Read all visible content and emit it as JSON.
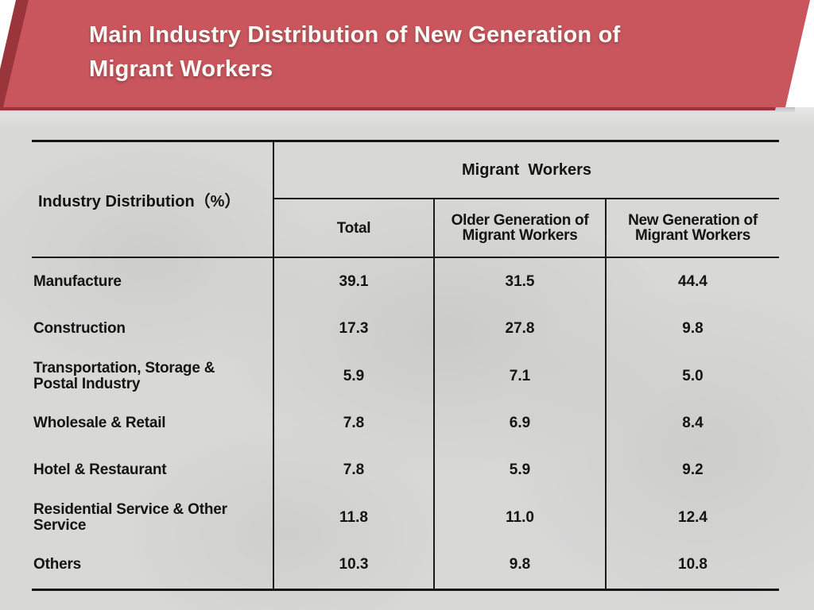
{
  "banner": {
    "title": "Main Industry Distribution of New Generation of Migrant Workers",
    "color": "#c9565c",
    "shadow_color": "#9b353c",
    "title_color": "#fdfbf6"
  },
  "background_color": "#d8d8d7",
  "table": {
    "corner_header": "Industry Distribution（%）",
    "group_header": "Migrant  Workers",
    "sub_headers": {
      "total": "Total",
      "older": "Older Generation of Migrant Workers",
      "newer": "New Generation of Migrant Workers"
    },
    "rows": [
      {
        "label": "Manufacture",
        "values": [
          "39.1",
          "31.5",
          "44.4"
        ]
      },
      {
        "label": "Construction",
        "values": [
          "17.3",
          "27.8",
          "9.8"
        ]
      },
      {
        "label": "Transportation, Storage & Postal Industry",
        "values": [
          "5.9",
          "7.1",
          "5.0"
        ]
      },
      {
        "label": "Wholesale & Retail",
        "values": [
          "7.8",
          "6.9",
          "8.4"
        ]
      },
      {
        "label": "Hotel & Restaurant",
        "values": [
          "7.8",
          "5.9",
          "9.2"
        ]
      },
      {
        "label": "Residential Service & Other Service",
        "values": [
          "11.8",
          "11.0",
          "12.4"
        ]
      },
      {
        "label": "Others",
        "values": [
          "10.3",
          "9.8",
          "10.8"
        ]
      }
    ]
  }
}
